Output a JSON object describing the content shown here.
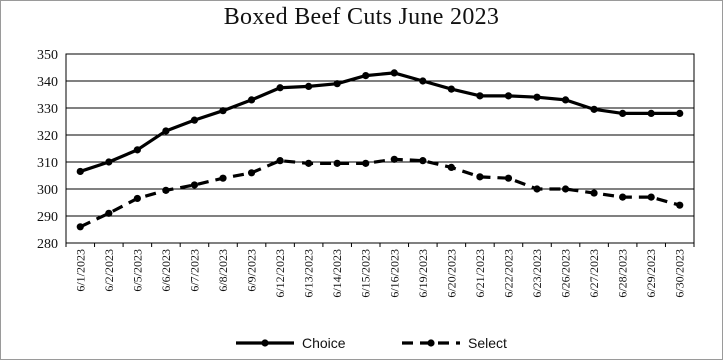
{
  "chart_data": {
    "type": "line",
    "title": "Boxed Beef Cuts June 2023",
    "xlabel": "",
    "ylabel": "",
    "ylim": [
      280,
      350
    ],
    "yticks": [
      280,
      290,
      300,
      310,
      320,
      330,
      340,
      350
    ],
    "grid": "horizontal",
    "legend": "bottom",
    "categories": [
      "6/1/2023",
      "6/2/2023",
      "6/5/2023",
      "6/6/2023",
      "6/7/2023",
      "6/8/2023",
      "6/9/2023",
      "6/12/2023",
      "6/13/2023",
      "6/14/2023",
      "6/15/2023",
      "6/16/2023",
      "6/19/2023",
      "6/20/2023",
      "6/21/2023",
      "6/22/2023",
      "6/23/2023",
      "6/26/2023",
      "6/27/2023",
      "6/28/2023",
      "6/29/2023",
      "6/30/2023"
    ],
    "series": [
      {
        "name": "Choice",
        "style": "solid",
        "color": "#000000",
        "values": [
          306.5,
          310.0,
          314.5,
          321.5,
          325.5,
          329.0,
          333.0,
          337.5,
          338.0,
          339.0,
          342.0,
          343.0,
          340.0,
          337.0,
          334.5,
          334.5,
          334.0,
          333.0,
          329.5,
          328.0,
          328.0,
          328.0
        ]
      },
      {
        "name": "Select",
        "style": "dashed",
        "color": "#000000",
        "values": [
          286.0,
          291.0,
          296.5,
          299.5,
          301.5,
          304.0,
          306.0,
          310.5,
          309.5,
          309.5,
          309.5,
          311.0,
          310.5,
          308.0,
          304.5,
          304.0,
          300.0,
          300.0,
          298.5,
          297.0,
          297.0,
          294.0
        ]
      }
    ]
  }
}
